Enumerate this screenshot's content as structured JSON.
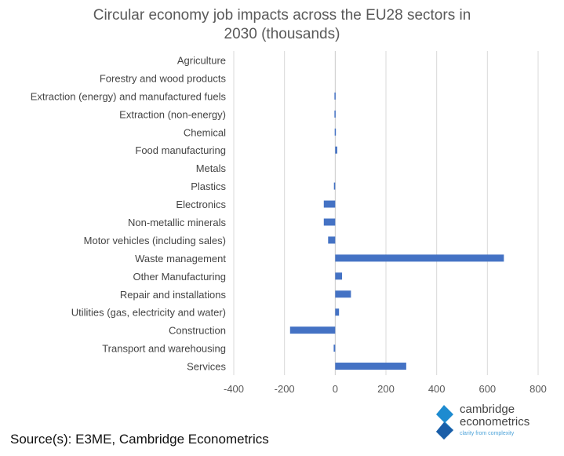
{
  "title_line1": "Circular economy job impacts across the EU28 sectors in",
  "title_line2": "2030 (thousands)",
  "source": "Source(s): E3ME, Cambridge Econometrics",
  "logo": {
    "line1": "cambridge",
    "line2": "econometrics",
    "tagline": "clarity from complexity",
    "accent": "#1e8bd0",
    "accent_dark": "#1a5ea8"
  },
  "chart_data": {
    "type": "bar",
    "orientation": "horizontal",
    "bar_color": "#4472c4",
    "categories": [
      "Agriculture",
      "Forestry and wood products",
      "Extraction (energy) and manufactured fuels",
      "Extraction (non-energy)",
      "Chemical",
      "Food manufacturing",
      "Metals",
      "Plastics",
      "Electronics",
      "Non-metallic minerals",
      "Motor vehicles (including sales)",
      "Waste management",
      "Other Manufacturing",
      "Repair and installations",
      "Utilities (gas, electricity and water)",
      "Construction",
      "Transport and warehousing",
      "Services"
    ],
    "values": [
      0,
      0,
      -3,
      -3,
      -2,
      8,
      0,
      -5,
      -45,
      -45,
      -28,
      665,
      27,
      62,
      15,
      -178,
      -6,
      280
    ],
    "xlim": [
      -400,
      800
    ],
    "xticks": [
      -400,
      -200,
      0,
      200,
      400,
      600,
      800
    ],
    "grid": true
  }
}
